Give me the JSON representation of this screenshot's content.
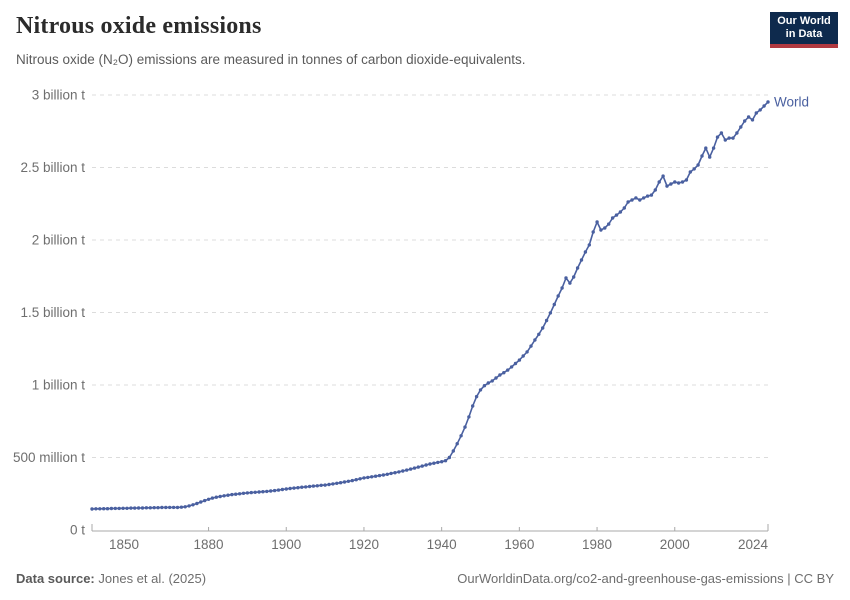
{
  "header": {
    "title": "Nitrous oxide emissions",
    "subtitle": "Nitrous oxide (N₂O) emissions are measured in tonnes of carbon dioxide-equivalents.",
    "logo": {
      "line1": "Our World",
      "line2": "in Data"
    }
  },
  "footer": {
    "datasource_label": "Data source:",
    "datasource_value": "Jones et al. (2025)",
    "credit": "OurWorldinData.org/co2-and-greenhouse-gas-emissions | CC BY"
  },
  "colors": {
    "series_world": "#4a60a0",
    "logo_bg": "#0e2a4d",
    "logo_accent": "#b13a41",
    "gridline": "#dcdcdc",
    "axis": "#a8a8a8",
    "tick_text": "#6e6e6e"
  },
  "chart_data": {
    "type": "line",
    "title": "Nitrous oxide emissions",
    "subtitle": "Nitrous oxide (N₂O) emissions are measured in tonnes of carbon dioxide-equivalents.",
    "xlabel": "",
    "ylabel": "",
    "unit": "billion tonnes CO₂-equivalents",
    "grid": "horizontal-dashed",
    "legend_position": "end-of-line",
    "xlim": [
      1850,
      2024
    ],
    "ylim": [
      0,
      3
    ],
    "x_ticks": [
      {
        "year": 1850,
        "label": "1850"
      },
      {
        "year": 1880,
        "label": "1880"
      },
      {
        "year": 1900,
        "label": "1900"
      },
      {
        "year": 1920,
        "label": "1920"
      },
      {
        "year": 1940,
        "label": "1940"
      },
      {
        "year": 1960,
        "label": "1960"
      },
      {
        "year": 1980,
        "label": "1980"
      },
      {
        "year": 2000,
        "label": "2000"
      },
      {
        "year": 2024,
        "label": "2024"
      }
    ],
    "y_ticks": [
      {
        "value": 0,
        "label": "0 t"
      },
      {
        "value": 0.5,
        "label": "500 million t"
      },
      {
        "value": 1,
        "label": "1 billion t"
      },
      {
        "value": 1.5,
        "label": "1.5 billion t"
      },
      {
        "value": 2,
        "label": "2 billion t"
      },
      {
        "value": 2.5,
        "label": "2.5 billion t"
      },
      {
        "value": 3,
        "label": "3 billion t"
      }
    ],
    "series": [
      {
        "name": "World",
        "color": "#4a60a0",
        "start_year": 1850,
        "end_year": 2024,
        "values_unit": "billion t",
        "values": [
          0.145,
          0.146,
          0.146,
          0.147,
          0.147,
          0.148,
          0.149,
          0.149,
          0.15,
          0.15,
          0.151,
          0.151,
          0.152,
          0.152,
          0.153,
          0.153,
          0.154,
          0.154,
          0.155,
          0.155,
          0.156,
          0.156,
          0.155,
          0.157,
          0.16,
          0.166,
          0.174,
          0.183,
          0.193,
          0.203,
          0.212,
          0.22,
          0.226,
          0.231,
          0.236,
          0.24,
          0.244,
          0.247,
          0.25,
          0.253,
          0.256,
          0.258,
          0.26,
          0.262,
          0.264,
          0.266,
          0.269,
          0.272,
          0.275,
          0.279,
          0.283,
          0.286,
          0.289,
          0.292,
          0.295,
          0.297,
          0.3,
          0.303,
          0.305,
          0.308,
          0.31,
          0.314,
          0.318,
          0.322,
          0.326,
          0.331,
          0.336,
          0.341,
          0.347,
          0.353,
          0.359,
          0.363,
          0.367,
          0.371,
          0.375,
          0.379,
          0.384,
          0.39,
          0.395,
          0.401,
          0.407,
          0.413,
          0.42,
          0.427,
          0.434,
          0.441,
          0.448,
          0.455,
          0.461,
          0.466,
          0.471,
          0.478,
          0.5,
          0.545,
          0.595,
          0.65,
          0.71,
          0.78,
          0.855,
          0.92,
          0.966,
          0.995,
          1.014,
          1.028,
          1.048,
          1.069,
          1.085,
          1.103,
          1.125,
          1.148,
          1.172,
          1.2,
          1.228,
          1.268,
          1.31,
          1.35,
          1.393,
          1.445,
          1.497,
          1.555,
          1.614,
          1.669,
          1.738,
          1.703,
          1.745,
          1.807,
          1.862,
          1.917,
          1.966,
          2.055,
          2.124,
          2.069,
          2.083,
          2.11,
          2.152,
          2.172,
          2.193,
          2.221,
          2.262,
          2.276,
          2.29,
          2.276,
          2.29,
          2.303,
          2.31,
          2.345,
          2.4,
          2.441,
          2.372,
          2.386,
          2.4,
          2.393,
          2.4,
          2.414,
          2.469,
          2.49,
          2.517,
          2.579,
          2.634,
          2.572,
          2.634,
          2.71,
          2.738,
          2.69,
          2.703,
          2.703,
          2.738,
          2.779,
          2.821,
          2.848,
          2.828,
          2.876,
          2.897,
          2.924,
          2.952
        ]
      }
    ]
  }
}
